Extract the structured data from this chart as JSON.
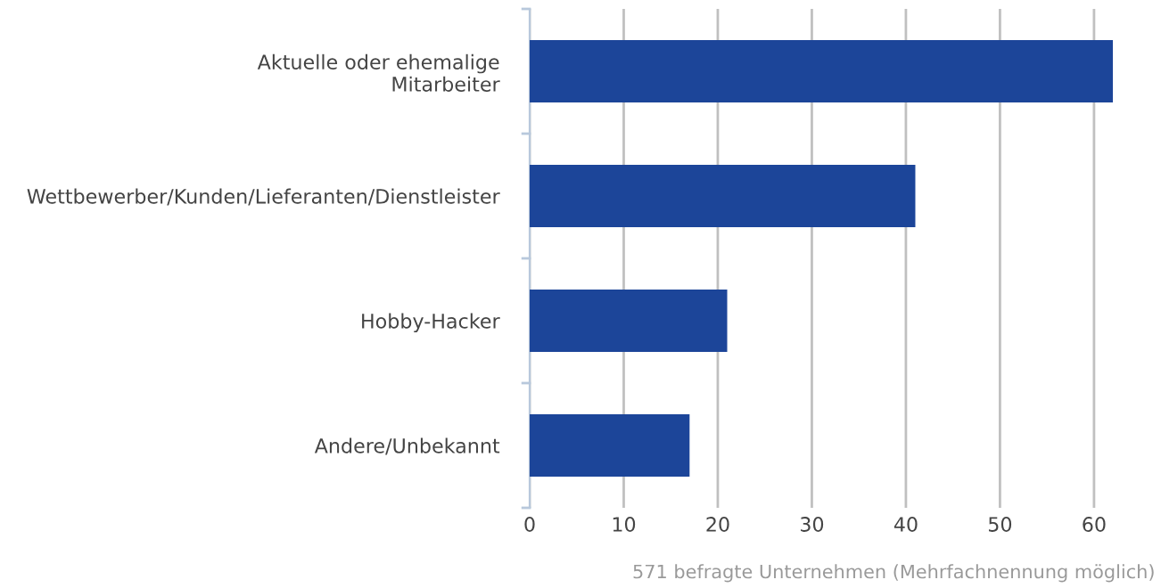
{
  "chart_data": {
    "type": "bar",
    "orientation": "horizontal",
    "categories": [
      "Aktuelle oder ehemalige\nMitarbeiter",
      "Wettbewerber/Kunden/Lieferanten/Dienstleister",
      "Hobby-Hacker",
      "Andere/Unbekannt"
    ],
    "values": [
      62,
      41,
      21,
      17
    ],
    "color": "#1c4599",
    "xlim": [
      0,
      62
    ],
    "xticks": [
      0,
      10,
      20,
      30,
      40,
      50,
      60
    ],
    "grid": "x",
    "annotations": [
      "571 befragte Unternehmen (Mehrfachnennung möglich)"
    ]
  }
}
